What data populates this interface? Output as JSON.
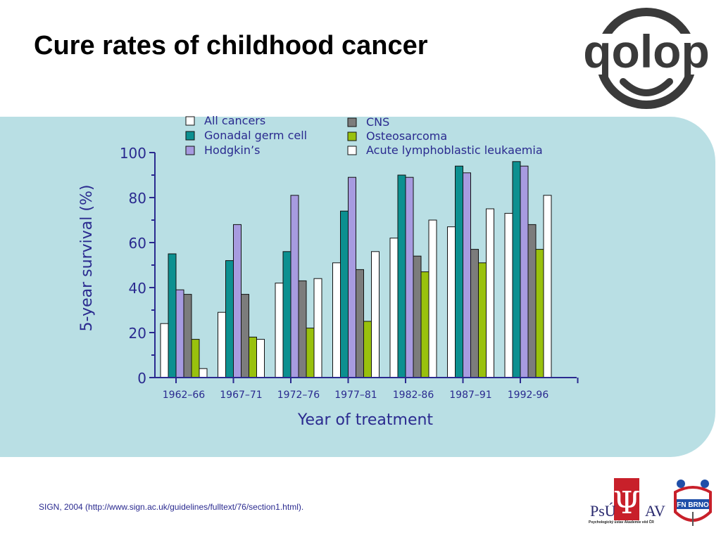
{
  "slide": {
    "title": "Cure rates of childhood cancer",
    "citation": "SIGN, 2004 (http://www.sign.ac.uk/guidelines/fulltext/76/section1.html).",
    "logos": {
      "top_right": "qolop",
      "psu_left_text": "PsÚ",
      "psu_symbol": "Ψ",
      "psu_right_text": "AV",
      "psu_caption": "Psychologický ústav Akademie věd ČR",
      "fn_text": "FN BRNO"
    },
    "colors": {
      "panel": "#b9dfe4",
      "text": "#2a2a8f",
      "axis": "#2a2a8f"
    }
  },
  "chart_data": {
    "type": "bar",
    "title": "",
    "xlabel": "Year of treatment",
    "ylabel": "5-year survival (%)",
    "ylim": [
      0,
      100
    ],
    "yticks": [
      0,
      20,
      40,
      60,
      80,
      100
    ],
    "grid": false,
    "legend_position": "top",
    "categories": [
      "1962–66",
      "1967–71",
      "1972–76",
      "1977–81",
      "1982-86",
      "1987–91",
      "1992-96"
    ],
    "series": [
      {
        "name": "All cancers",
        "color": "#ffffff",
        "values": [
          24,
          29,
          42,
          51,
          62,
          67,
          73
        ]
      },
      {
        "name": "Gonadal germ cell",
        "color": "#0c9090",
        "values": [
          55,
          52,
          56,
          74,
          90,
          94,
          96
        ]
      },
      {
        "name": "Hodgkin’s",
        "color": "#a79be0",
        "values": [
          39,
          68,
          81,
          89,
          89,
          91,
          94
        ]
      },
      {
        "name": "CNS",
        "color": "#7c7c7c",
        "values": [
          37,
          37,
          43,
          48,
          54,
          57,
          68
        ]
      },
      {
        "name": "Osteosarcoma",
        "color": "#99c10d",
        "values": [
          17,
          18,
          22,
          25,
          47,
          51,
          57
        ]
      },
      {
        "name": "Acute lymphoblastic leukaemia",
        "color": "#ffffff",
        "values": [
          4,
          17,
          44,
          56,
          70,
          75,
          81
        ]
      }
    ]
  }
}
